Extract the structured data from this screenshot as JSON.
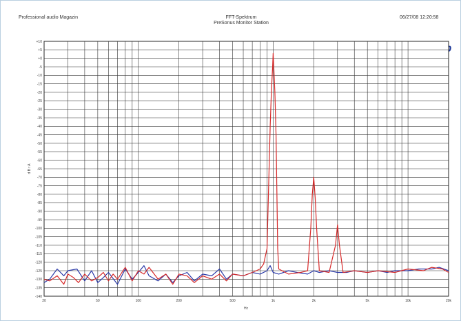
{
  "header": {
    "left": "Professional audio Magazin",
    "center_title": "FFT-Spektrum",
    "center_subtitle": "PreSonus Monitor Station",
    "right": "06/27/08 12:20:58",
    "logo": "Ap"
  },
  "chart_data": {
    "type": "line",
    "title": "FFT-Spektrum",
    "subtitle": "PreSonus Monitor Station",
    "xlabel": "Hz",
    "ylabel": "d B r A",
    "xscale": "log",
    "xlim": [
      20,
      20000
    ],
    "ylim": [
      -140,
      10
    ],
    "grid": true,
    "x_tick_labels": [
      "20",
      "50",
      "100",
      "200",
      "500",
      "1k",
      "2k",
      "5k",
      "10k",
      "20k"
    ],
    "x_tick_values": [
      20,
      50,
      100,
      200,
      500,
      1000,
      2000,
      5000,
      10000,
      20000
    ],
    "y_tick_labels": [
      "+10",
      "+5",
      "+0",
      "-5",
      "-10",
      "-15",
      "-20",
      "-25",
      "-30",
      "-35",
      "-40",
      "-45",
      "-50",
      "-55",
      "-60",
      "-65",
      "-70",
      "-75",
      "-80",
      "-85",
      "-90",
      "-95",
      "-100",
      "-105",
      "-110",
      "-115",
      "-120",
      "-125",
      "-130",
      "-135",
      "-140"
    ],
    "y_tick_values": [
      10,
      5,
      0,
      -5,
      -10,
      -15,
      -20,
      -25,
      -30,
      -35,
      -40,
      -45,
      -50,
      -55,
      -60,
      -65,
      -70,
      -75,
      -80,
      -85,
      -90,
      -95,
      -100,
      -105,
      -110,
      -115,
      -120,
      -125,
      -130,
      -135,
      -140
    ],
    "series": [
      {
        "color": "#2b3aa8",
        "points": [
          [
            20,
            -132
          ],
          [
            22,
            -130
          ],
          [
            25,
            -124
          ],
          [
            28,
            -128
          ],
          [
            30,
            -125
          ],
          [
            35,
            -124
          ],
          [
            40,
            -131
          ],
          [
            45,
            -125
          ],
          [
            50,
            -132
          ],
          [
            55,
            -129
          ],
          [
            60,
            -126
          ],
          [
            70,
            -133
          ],
          [
            80,
            -124
          ],
          [
            90,
            -130
          ],
          [
            100,
            -126
          ],
          [
            110,
            -122
          ],
          [
            120,
            -128
          ],
          [
            140,
            -131
          ],
          [
            160,
            -127
          ],
          [
            180,
            -132
          ],
          [
            200,
            -128
          ],
          [
            230,
            -126
          ],
          [
            260,
            -131
          ],
          [
            300,
            -127
          ],
          [
            350,
            -128
          ],
          [
            400,
            -124
          ],
          [
            450,
            -130
          ],
          [
            500,
            -127
          ],
          [
            600,
            -128
          ],
          [
            700,
            -126
          ],
          [
            800,
            -127
          ],
          [
            900,
            -125
          ],
          [
            950,
            -122
          ],
          [
            1000,
            -126
          ],
          [
            1100,
            -127
          ],
          [
            1300,
            -125
          ],
          [
            1500,
            -126
          ],
          [
            1800,
            -127
          ],
          [
            2000,
            -125
          ],
          [
            2200,
            -126
          ],
          [
            2600,
            -125
          ],
          [
            3000,
            -126
          ],
          [
            3500,
            -126
          ],
          [
            4000,
            -125
          ],
          [
            5000,
            -126
          ],
          [
            6000,
            -125
          ],
          [
            7000,
            -126
          ],
          [
            8000,
            -125
          ],
          [
            10000,
            -125
          ],
          [
            12000,
            -124
          ],
          [
            15000,
            -124
          ],
          [
            17000,
            -123
          ],
          [
            20000,
            -125
          ]
        ]
      },
      {
        "color": "#d62a2a",
        "points": [
          [
            20,
            -130
          ],
          [
            22,
            -131
          ],
          [
            25,
            -128
          ],
          [
            28,
            -133
          ],
          [
            30,
            -127
          ],
          [
            33,
            -129
          ],
          [
            36,
            -132
          ],
          [
            40,
            -127
          ],
          [
            45,
            -131
          ],
          [
            50,
            -129
          ],
          [
            55,
            -126
          ],
          [
            60,
            -131
          ],
          [
            65,
            -127
          ],
          [
            70,
            -130
          ],
          [
            80,
            -123
          ],
          [
            90,
            -131
          ],
          [
            100,
            -125
          ],
          [
            110,
            -127
          ],
          [
            120,
            -123
          ],
          [
            140,
            -130
          ],
          [
            160,
            -127
          ],
          [
            180,
            -133
          ],
          [
            200,
            -127
          ],
          [
            230,
            -128
          ],
          [
            260,
            -132
          ],
          [
            300,
            -128
          ],
          [
            350,
            -130
          ],
          [
            400,
            -127
          ],
          [
            450,
            -131
          ],
          [
            500,
            -127
          ],
          [
            600,
            -128
          ],
          [
            700,
            -126
          ],
          [
            800,
            -124
          ],
          [
            850,
            -121
          ],
          [
            900,
            -112
          ],
          [
            950,
            -40
          ],
          [
            970,
            -20
          ],
          [
            990,
            -5
          ],
          [
            1000,
            3
          ],
          [
            1010,
            -5
          ],
          [
            1030,
            -20
          ],
          [
            1050,
            -45
          ],
          [
            1080,
            -112
          ],
          [
            1100,
            -124
          ],
          [
            1300,
            -127
          ],
          [
            1600,
            -126
          ],
          [
            1800,
            -125
          ],
          [
            1900,
            -100
          ],
          [
            1950,
            -80
          ],
          [
            2000,
            -70
          ],
          [
            2050,
            -82
          ],
          [
            2100,
            -100
          ],
          [
            2200,
            -125
          ],
          [
            2600,
            -126
          ],
          [
            2900,
            -110
          ],
          [
            3000,
            -98
          ],
          [
            3100,
            -110
          ],
          [
            3300,
            -126
          ],
          [
            4000,
            -125
          ],
          [
            5000,
            -126
          ],
          [
            6000,
            -125
          ],
          [
            8000,
            -126
          ],
          [
            10000,
            -124
          ],
          [
            13000,
            -125
          ],
          [
            15000,
            -123
          ],
          [
            18000,
            -124
          ],
          [
            20000,
            -126
          ]
        ]
      }
    ]
  }
}
